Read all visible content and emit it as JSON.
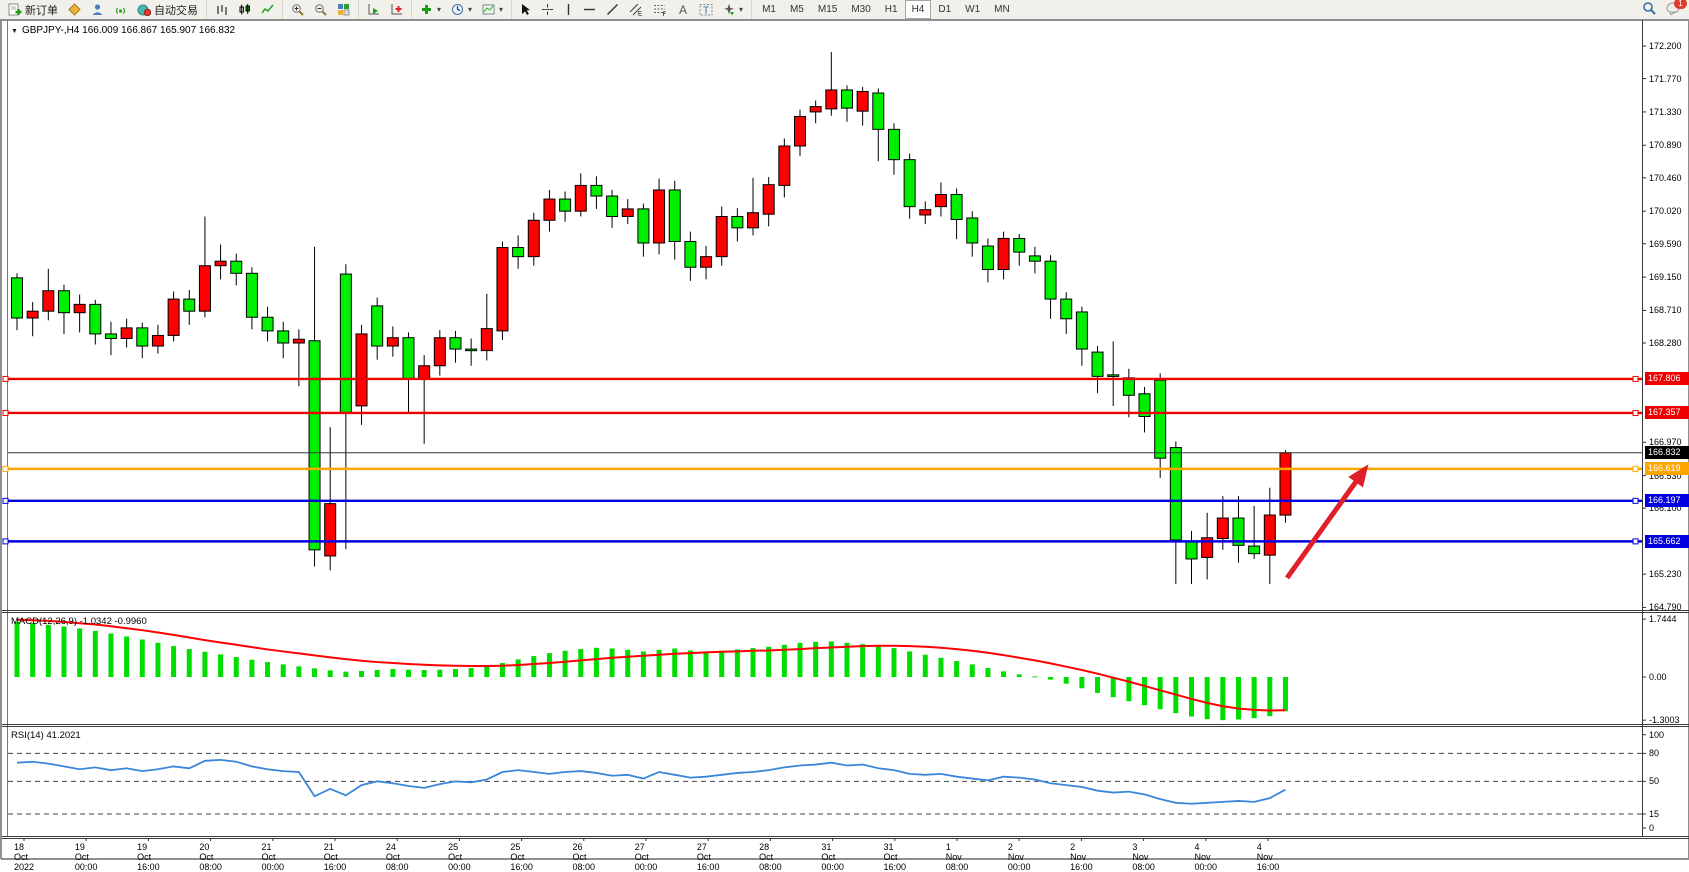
{
  "toolbar": {
    "groups": [
      {
        "name": "standard",
        "items": [
          {
            "name": "new-order-button",
            "icon": "new-order",
            "label": "新订单"
          },
          {
            "name": "metaeditor-button",
            "icon": "metaeditor"
          },
          {
            "name": "mql5-account-button",
            "icon": "mql5-user"
          },
          {
            "name": "signals-button",
            "icon": "signals"
          },
          {
            "name": "autotrading-button",
            "icon": "autotrading",
            "label": "自动交易"
          }
        ]
      },
      {
        "name": "chart-types",
        "items": [
          {
            "name": "bar-chart-button",
            "icon": "bar-chart"
          },
          {
            "name": "candlestick-button",
            "icon": "candles"
          },
          {
            "name": "line-chart-button",
            "icon": "line-chart"
          }
        ]
      },
      {
        "name": "zoom",
        "items": [
          {
            "name": "zoom-in-button",
            "icon": "zoom-in"
          },
          {
            "name": "zoom-out-button",
            "icon": "zoom-out"
          },
          {
            "name": "tile-windows-button",
            "icon": "tile-windows"
          }
        ]
      },
      {
        "name": "scroll",
        "items": [
          {
            "name": "auto-scroll-button",
            "icon": "auto-scroll"
          },
          {
            "name": "chart-shift-button",
            "icon": "chart-shift"
          }
        ]
      },
      {
        "name": "dropdowns",
        "items": [
          {
            "name": "indicators-dropdown",
            "icon": "indicators",
            "caret": true
          },
          {
            "name": "periods-dropdown",
            "icon": "periods",
            "caret": true
          },
          {
            "name": "templates-dropdown",
            "icon": "templates",
            "caret": true
          }
        ]
      },
      {
        "name": "line-studies",
        "items": [
          {
            "name": "cursor-button",
            "icon": "cursor"
          },
          {
            "name": "crosshair-button",
            "icon": "crosshair"
          },
          {
            "name": "vertical-line-button",
            "icon": "vline"
          },
          {
            "name": "horizontal-line-button",
            "icon": "hline"
          },
          {
            "name": "trendline-button",
            "icon": "trendline"
          },
          {
            "name": "equidistant-channel-button",
            "icon": "channel"
          },
          {
            "name": "fibonacci-button",
            "icon": "fibo"
          },
          {
            "name": "text-button",
            "icon": "text"
          },
          {
            "name": "text-label-button",
            "icon": "label"
          },
          {
            "name": "arrows-dropdown",
            "icon": "arrows",
            "caret": true
          }
        ]
      }
    ],
    "timeframes": [
      "M1",
      "M5",
      "M15",
      "M30",
      "H1",
      "H4",
      "D1",
      "W1",
      "MN"
    ],
    "active_timeframe": "H4",
    "notifications_count": "1"
  },
  "chart": {
    "symbol_title": "GBPJPY-,H4 166.009 166.867 165.907 166.832",
    "menu_glyph": "▼"
  },
  "indicators": {
    "macd_name": "MACD(12,26,9)",
    "macd_main_value": "-1.0342",
    "macd_signal_value": "-0.9960",
    "rsi_name": "RSI(14)",
    "rsi_value": "41.2021"
  },
  "colors": {
    "bull": "#ff0000",
    "bear": "#00e000",
    "bear_fill": "#00ee00",
    "wick": "#000000",
    "line_red": "#ee0000",
    "line_blue": "#0000e0",
    "line_orange": "#ffa500",
    "line_black": "#3a3a3a",
    "macd_hist": "#00dd00",
    "macd_signal": "#ff0000",
    "rsi_line": "#3a87d9",
    "arrow": "#e02028",
    "box_black": "#000000"
  },
  "chart_data": [
    {
      "type": "candlestick",
      "title": "GBPJPY-,H4",
      "ylim": [
        164.79,
        172.42
      ],
      "yticks": [
        "172.200",
        "171.770",
        "171.330",
        "170.890",
        "170.460",
        "170.020",
        "169.590",
        "169.150",
        "168.710",
        "168.280",
        "166.970",
        "166.530",
        "166.100",
        "165.230",
        "164.790"
      ],
      "ohlc": [
        [
          169.14,
          169.2,
          168.45,
          168.61
        ],
        [
          168.61,
          168.82,
          168.37,
          168.7
        ],
        [
          168.7,
          169.26,
          168.58,
          168.97
        ],
        [
          168.97,
          169.05,
          168.4,
          168.68
        ],
        [
          168.68,
          168.92,
          168.42,
          168.79
        ],
        [
          168.79,
          168.85,
          168.26,
          168.4
        ],
        [
          168.4,
          168.56,
          168.12,
          168.34
        ],
        [
          168.34,
          168.6,
          168.22,
          168.48
        ],
        [
          168.48,
          168.55,
          168.08,
          168.24
        ],
        [
          168.24,
          168.52,
          168.14,
          168.38
        ],
        [
          168.38,
          168.96,
          168.3,
          168.86
        ],
        [
          168.86,
          168.98,
          168.52,
          168.7
        ],
        [
          168.7,
          169.95,
          168.62,
          169.3
        ],
        [
          169.3,
          169.58,
          169.12,
          169.36
        ],
        [
          169.36,
          169.46,
          169.04,
          169.2
        ],
        [
          169.2,
          169.28,
          168.46,
          168.62
        ],
        [
          168.62,
          168.76,
          168.3,
          168.44
        ],
        [
          168.44,
          168.56,
          168.08,
          168.28
        ],
        [
          168.28,
          168.46,
          167.71,
          168.33
        ],
        [
          168.31,
          169.55,
          165.33,
          165.55
        ],
        [
          165.47,
          167.17,
          165.28,
          166.16
        ],
        [
          169.19,
          169.32,
          165.56,
          167.36
        ],
        [
          167.45,
          168.52,
          167.2,
          168.4
        ],
        [
          168.77,
          168.88,
          168.06,
          168.24
        ],
        [
          168.24,
          168.5,
          168.1,
          168.35
        ],
        [
          168.35,
          168.42,
          167.35,
          167.8
        ],
        [
          167.8,
          168.12,
          166.95,
          167.98
        ],
        [
          167.98,
          168.45,
          167.85,
          168.35
        ],
        [
          168.35,
          168.44,
          168.02,
          168.2
        ],
        [
          168.2,
          168.34,
          167.98,
          168.18
        ],
        [
          168.18,
          168.93,
          168.05,
          168.47
        ],
        [
          168.44,
          169.62,
          168.32,
          169.54
        ],
        [
          169.54,
          169.7,
          169.26,
          169.42
        ],
        [
          169.42,
          170.0,
          169.3,
          169.9
        ],
        [
          169.9,
          170.3,
          169.75,
          170.18
        ],
        [
          170.18,
          170.28,
          169.88,
          170.02
        ],
        [
          170.02,
          170.52,
          169.95,
          170.36
        ],
        [
          170.36,
          170.48,
          170.05,
          170.22
        ],
        [
          170.22,
          170.3,
          169.8,
          169.95
        ],
        [
          169.95,
          170.18,
          169.85,
          170.05
        ],
        [
          170.05,
          170.12,
          169.42,
          169.6
        ],
        [
          169.6,
          170.45,
          169.45,
          170.3
        ],
        [
          170.3,
          170.42,
          169.38,
          169.62
        ],
        [
          169.62,
          169.75,
          169.1,
          169.28
        ],
        [
          169.28,
          169.56,
          169.12,
          169.42
        ],
        [
          169.42,
          170.08,
          169.3,
          169.95
        ],
        [
          169.95,
          170.06,
          169.62,
          169.8
        ],
        [
          169.8,
          170.46,
          169.7,
          170.0
        ],
        [
          169.98,
          170.47,
          169.82,
          170.37
        ],
        [
          170.36,
          170.98,
          170.2,
          170.88
        ],
        [
          170.88,
          171.36,
          170.75,
          171.27
        ],
        [
          171.33,
          171.48,
          171.18,
          171.4
        ],
        [
          171.37,
          172.12,
          171.28,
          171.62
        ],
        [
          171.62,
          171.68,
          171.2,
          171.38
        ],
        [
          171.34,
          171.66,
          171.15,
          171.6
        ],
        [
          171.58,
          171.64,
          170.68,
          171.1
        ],
        [
          171.1,
          171.18,
          170.5,
          170.7
        ],
        [
          170.7,
          170.78,
          169.92,
          170.08
        ],
        [
          169.97,
          170.15,
          169.85,
          170.04
        ],
        [
          170.08,
          170.4,
          169.95,
          170.24
        ],
        [
          170.24,
          170.32,
          169.65,
          169.91
        ],
        [
          169.93,
          170.02,
          169.42,
          169.6
        ],
        [
          169.56,
          169.66,
          169.08,
          169.25
        ],
        [
          169.25,
          169.75,
          169.12,
          169.66
        ],
        [
          169.66,
          169.72,
          169.3,
          169.48
        ],
        [
          169.43,
          169.55,
          169.2,
          169.36
        ],
        [
          169.36,
          169.44,
          168.6,
          168.86
        ],
        [
          168.86,
          168.95,
          168.4,
          168.6
        ],
        [
          168.69,
          168.76,
          167.98,
          168.2
        ],
        [
          168.16,
          168.24,
          167.62,
          167.84
        ],
        [
          167.86,
          168.3,
          167.45,
          167.84
        ],
        [
          167.82,
          167.94,
          167.3,
          167.59
        ],
        [
          167.61,
          167.7,
          167.1,
          167.31
        ],
        [
          167.79,
          167.88,
          166.5,
          166.76
        ],
        [
          166.9,
          166.98,
          165.1,
          165.68
        ],
        [
          165.66,
          165.8,
          165.1,
          165.43
        ],
        [
          165.45,
          166.04,
          165.16,
          165.71
        ],
        [
          165.7,
          166.26,
          165.55,
          165.97
        ],
        [
          165.97,
          166.26,
          165.38,
          165.61
        ],
        [
          165.6,
          166.13,
          165.43,
          165.5
        ],
        [
          165.48,
          166.37,
          165.1,
          166.01
        ],
        [
          166.009,
          166.867,
          165.907,
          166.832
        ]
      ],
      "hlines": [
        {
          "price": "167.806",
          "color": "red"
        },
        {
          "price": "167.357",
          "color": "red"
        },
        {
          "price": "166.832",
          "color": "black"
        },
        {
          "price": "166.619",
          "color": "orange"
        },
        {
          "price": "166.197",
          "color": "blue"
        },
        {
          "price": "165.662",
          "color": "blue"
        }
      ],
      "arrow": {
        "bar_from": 81.1,
        "price_from": 165.18,
        "bar_to": 86.3,
        "price_to": 166.68
      }
    },
    {
      "type": "bar",
      "title": "MACD(12,26,9)",
      "yticks": [
        "1.7444",
        "0.00",
        "-1.3003"
      ],
      "values": [
        1.66,
        1.62,
        1.57,
        1.52,
        1.46,
        1.39,
        1.31,
        1.22,
        1.13,
        1.03,
        0.93,
        0.84,
        0.76,
        0.68,
        0.6,
        0.52,
        0.45,
        0.38,
        0.32,
        0.26,
        0.2,
        0.16,
        0.18,
        0.21,
        0.24,
        0.22,
        0.21,
        0.22,
        0.24,
        0.27,
        0.32,
        0.42,
        0.53,
        0.63,
        0.72,
        0.79,
        0.84,
        0.88,
        0.86,
        0.82,
        0.77,
        0.82,
        0.86,
        0.8,
        0.75,
        0.79,
        0.83,
        0.87,
        0.91,
        0.97,
        1.03,
        1.06,
        1.07,
        1.03,
        0.99,
        0.95,
        0.87,
        0.77,
        0.67,
        0.58,
        0.48,
        0.38,
        0.27,
        0.17,
        0.08,
        0.02,
        -0.08,
        -0.2,
        -0.34,
        -0.48,
        -0.61,
        -0.73,
        -0.85,
        -0.97,
        -1.09,
        -1.19,
        -1.27,
        -1.3,
        -1.28,
        -1.24,
        -1.18,
        -1.03
      ],
      "signal": [
        1.73,
        1.71,
        1.69,
        1.66,
        1.62,
        1.58,
        1.53,
        1.47,
        1.41,
        1.34,
        1.27,
        1.19,
        1.11,
        1.04,
        0.97,
        0.9,
        0.83,
        0.77,
        0.71,
        0.65,
        0.59,
        0.54,
        0.49,
        0.45,
        0.42,
        0.39,
        0.37,
        0.35,
        0.34,
        0.33,
        0.33,
        0.34,
        0.36,
        0.39,
        0.42,
        0.46,
        0.5,
        0.54,
        0.58,
        0.61,
        0.64,
        0.67,
        0.7,
        0.72,
        0.74,
        0.76,
        0.77,
        0.79,
        0.8,
        0.82,
        0.84,
        0.87,
        0.89,
        0.91,
        0.93,
        0.94,
        0.94,
        0.93,
        0.91,
        0.88,
        0.84,
        0.79,
        0.73,
        0.66,
        0.58,
        0.5,
        0.41,
        0.31,
        0.21,
        0.1,
        -0.02,
        -0.14,
        -0.27,
        -0.4,
        -0.53,
        -0.66,
        -0.78,
        -0.88,
        -0.95,
        -0.99,
        -1.01,
        -1.0
      ]
    },
    {
      "type": "line",
      "title": "RSI(14)",
      "yticks": [
        "100",
        "80",
        "50",
        "15",
        "0"
      ],
      "levels": [
        80,
        50,
        15
      ],
      "values": [
        70,
        71,
        69,
        66,
        63,
        65,
        62,
        64,
        61,
        63,
        66,
        64,
        72,
        73,
        71,
        66,
        63,
        61,
        60,
        34,
        42,
        35,
        46,
        50,
        48,
        45,
        43,
        47,
        50,
        49,
        52,
        60,
        62,
        60,
        58,
        60,
        61,
        59,
        56,
        57,
        53,
        60,
        57,
        54,
        55,
        57,
        59,
        60,
        62,
        65,
        67,
        68,
        70,
        67,
        68,
        64,
        62,
        58,
        57,
        58,
        55,
        53,
        51,
        55,
        54,
        52,
        48,
        46,
        44,
        40,
        38,
        39,
        36,
        31,
        27,
        26,
        27,
        28,
        29,
        28,
        32,
        41.2
      ]
    }
  ],
  "time_axis": {
    "labels": [
      "18 Oct 2022",
      "19 Oct 00:00",
      "19 Oct 16:00",
      "20 Oct 08:00",
      "21 Oct 00:00",
      "21 Oct 16:00",
      "24 Oct 08:00",
      "25 Oct 00:00",
      "25 Oct 16:00",
      "26 Oct 08:00",
      "27 Oct 00:00",
      "27 Oct 16:00",
      "28 Oct 08:00",
      "31 Oct 00:00",
      "31 Oct 16:00",
      "1 Nov 08:00",
      "2 Nov 00:00",
      "2 Nov 16:00",
      "3 Nov 08:00",
      "4 Nov 00:00",
      "4 Nov 16:00"
    ]
  }
}
